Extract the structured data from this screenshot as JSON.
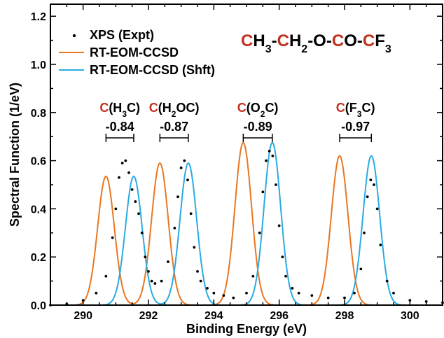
{
  "chart_data": {
    "type": "line",
    "xlabel": "Binding Energy (eV)",
    "ylabel": "Spectral Function (1/eV)",
    "xlim": [
      289,
      301
    ],
    "ylim": [
      0,
      1.25
    ],
    "x_ticks": [
      "290",
      "292",
      "294",
      "296",
      "298",
      "300"
    ],
    "y_ticks": [
      "0.0",
      "0.2",
      "0.4",
      "0.6",
      "0.8",
      "1.0",
      "1.2"
    ],
    "legend_position": "top-left",
    "legend": [
      {
        "label": "XPS (Expt)",
        "color": "#000000",
        "marker": "dot"
      },
      {
        "label": "RT-EOM-CCSD",
        "color": "#e87722",
        "marker": "line"
      },
      {
        "label": "RT-EOM-CCSD (Shft)",
        "color": "#29abe2",
        "marker": "line"
      }
    ],
    "formula": {
      "parts": [
        {
          "t": "C",
          "red": true
        },
        {
          "t": "H",
          "red": false
        },
        {
          "t": "3",
          "sub": true
        },
        {
          "t": "-",
          "red": false
        },
        {
          "t": "C",
          "red": true
        },
        {
          "t": "H",
          "red": false
        },
        {
          "t": "2",
          "sub": true
        },
        {
          "t": "-O-",
          "red": false
        },
        {
          "t": "C",
          "red": true
        },
        {
          "t": "O-",
          "red": false
        },
        {
          "t": "C",
          "red": true
        },
        {
          "t": "F",
          "red": false
        },
        {
          "t": "3",
          "sub": true
        }
      ]
    },
    "annotations": [
      {
        "parts": [
          {
            "t": "C",
            "red": true
          },
          {
            "t": "(H"
          },
          {
            "t": "3",
            "sub": true
          },
          {
            "t": "C)"
          }
        ],
        "shift": "-0.84",
        "from": 290.7,
        "to": 291.55
      },
      {
        "parts": [
          {
            "t": "C",
            "red": true
          },
          {
            "t": "(H"
          },
          {
            "t": "2",
            "sub": true
          },
          {
            "t": "OC)"
          }
        ],
        "shift": "-0.87",
        "from": 292.35,
        "to": 293.22
      },
      {
        "parts": [
          {
            "t": "C",
            "red": true
          },
          {
            "t": "(O"
          },
          {
            "t": "2",
            "sub": true
          },
          {
            "t": "C)"
          }
        ],
        "shift": "-0.89",
        "from": 294.9,
        "to": 295.79
      },
      {
        "parts": [
          {
            "t": "C",
            "red": true
          },
          {
            "t": "(F"
          },
          {
            "t": "3",
            "sub": true
          },
          {
            "t": "C)"
          }
        ],
        "shift": "-0.97",
        "from": 297.85,
        "to": 298.82
      }
    ],
    "series": [
      {
        "name": "XPS (Expt)",
        "kind": "points",
        "color": "#000000",
        "x": [
          289.0,
          289.5,
          290.0,
          290.4,
          290.7,
          290.9,
          291.0,
          291.1,
          291.2,
          291.3,
          291.4,
          291.5,
          291.6,
          291.7,
          291.8,
          291.9,
          292.0,
          292.1,
          292.2,
          292.4,
          292.6,
          292.8,
          292.9,
          293.0,
          293.1,
          293.2,
          293.3,
          293.4,
          293.5,
          293.6,
          293.8,
          294.0,
          294.3,
          294.6,
          295.0,
          295.2,
          295.4,
          295.5,
          295.6,
          295.7,
          295.8,
          295.9,
          296.0,
          296.1,
          296.2,
          296.4,
          296.6,
          297.0,
          297.5,
          298.0,
          298.3,
          298.5,
          298.6,
          298.7,
          298.8,
          298.9,
          299.0,
          299.1,
          299.3,
          299.5,
          300.0,
          300.5,
          301.0
        ],
        "y": [
          0.0,
          0.005,
          0.02,
          0.05,
          0.12,
          0.28,
          0.4,
          0.53,
          0.59,
          0.6,
          0.55,
          0.48,
          0.43,
          0.38,
          0.3,
          0.2,
          0.14,
          0.1,
          0.09,
          0.1,
          0.18,
          0.32,
          0.45,
          0.57,
          0.6,
          0.52,
          0.38,
          0.24,
          0.14,
          0.1,
          0.07,
          0.05,
          0.04,
          0.03,
          0.05,
          0.12,
          0.3,
          0.47,
          0.6,
          0.64,
          0.62,
          0.5,
          0.33,
          0.2,
          0.12,
          0.07,
          0.05,
          0.04,
          0.03,
          0.03,
          0.05,
          0.15,
          0.3,
          0.45,
          0.52,
          0.5,
          0.4,
          0.25,
          0.1,
          0.05,
          0.02,
          0.015,
          0.01
        ]
      },
      {
        "name": "RT-EOM-CCSD",
        "kind": "gaussians",
        "color": "#e87722",
        "peaks": [
          {
            "center": 290.7,
            "height": 0.535,
            "fwhm": 0.6
          },
          {
            "center": 292.35,
            "height": 0.59,
            "fwhm": 0.6
          },
          {
            "center": 294.9,
            "height": 0.675,
            "fwhm": 0.6
          },
          {
            "center": 297.85,
            "height": 0.62,
            "fwhm": 0.6
          }
        ]
      },
      {
        "name": "RT-EOM-CCSD (Shft)",
        "kind": "gaussians",
        "color": "#29abe2",
        "peaks": [
          {
            "center": 291.55,
            "height": 0.535,
            "fwhm": 0.6
          },
          {
            "center": 293.22,
            "height": 0.59,
            "fwhm": 0.6
          },
          {
            "center": 295.79,
            "height": 0.675,
            "fwhm": 0.6
          },
          {
            "center": 298.82,
            "height": 0.62,
            "fwhm": 0.6
          }
        ]
      }
    ]
  }
}
